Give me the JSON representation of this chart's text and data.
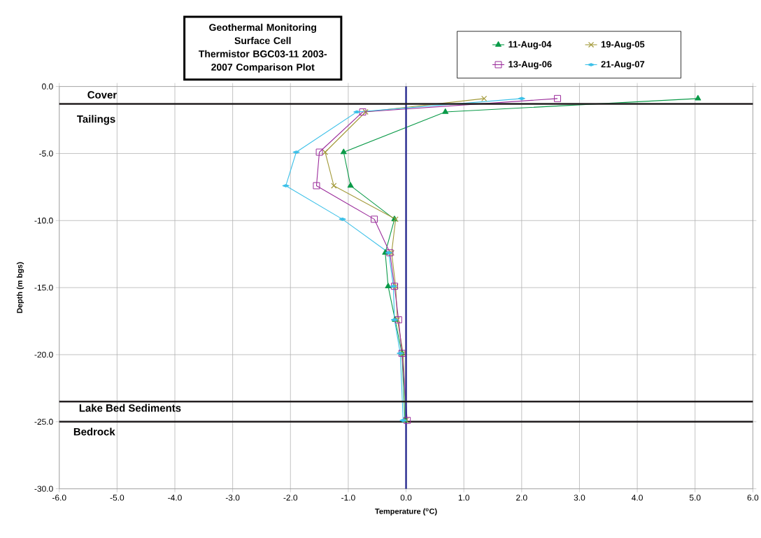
{
  "chart_data": {
    "type": "line",
    "title": "Geothermal Monitoring Surface Cell",
    "subtitle": "Thermistor BGC03-11 2003-2007 Comparison Plot",
    "xlabel": "Temperature ($^{o}$C)",
    "ylabel": "Depth (m bgs)",
    "series": [
      {
        "name": "11-Aug-04",
        "color": "#0a9a48",
        "marker": "triangle",
        "x": [
          5.05,
          0.68,
          -1.08,
          -0.96,
          -0.2,
          -0.36,
          -0.31,
          -0.19,
          -0.07,
          -0.02
        ],
        "values": [
          -0.9,
          -1.9,
          -4.9,
          -7.4,
          -9.9,
          -12.4,
          -14.9,
          -17.4,
          -19.9,
          -24.9
        ]
      },
      {
        "name": "19-Aug-05",
        "color": "#a39a3a",
        "marker": "cross",
        "x": [
          1.35,
          -0.7,
          -1.4,
          -1.25,
          -0.18,
          -0.25,
          -0.18,
          -0.15,
          -0.05,
          0.0
        ],
        "values": [
          -0.9,
          -1.9,
          -4.9,
          -7.4,
          -9.9,
          -12.4,
          -14.9,
          -17.4,
          -19.9,
          -24.9
        ]
      },
      {
        "name": "13-Aug-06",
        "color": "#9b2c9b",
        "marker": "square",
        "x": [
          2.62,
          -0.75,
          -1.5,
          -1.55,
          -0.55,
          -0.28,
          -0.2,
          -0.13,
          -0.07,
          0.02
        ],
        "values": [
          -0.9,
          -1.9,
          -4.9,
          -7.4,
          -9.9,
          -12.4,
          -14.9,
          -17.4,
          -19.9,
          -24.9
        ]
      },
      {
        "name": "21-Aug-07",
        "color": "#3cc0e8",
        "marker": "diamond",
        "x": [
          2.0,
          -0.85,
          -1.9,
          -2.08,
          -1.1,
          -0.3,
          -0.22,
          -0.2,
          -0.1,
          -0.05
        ],
        "values": [
          -0.9,
          -1.9,
          -4.9,
          -7.4,
          -9.9,
          -12.4,
          -14.9,
          -17.4,
          -19.9,
          -24.9
        ]
      }
    ],
    "xlim": [
      -6,
      6
    ],
    "xticks": [
      {
        "value": -6,
        "label": "-6.0"
      },
      {
        "value": -5,
        "label": "-5.0"
      },
      {
        "value": -4,
        "label": "-4.0"
      },
      {
        "value": -3,
        "label": "-3.0"
      },
      {
        "value": -2,
        "label": "-2.0"
      },
      {
        "value": -1,
        "label": "-1.0"
      },
      {
        "value": 0,
        "label": "0.0"
      },
      {
        "value": 1,
        "label": "1.0"
      },
      {
        "value": 2,
        "label": "2.0"
      },
      {
        "value": 3,
        "label": "3.0"
      },
      {
        "value": 4,
        "label": "4.0"
      },
      {
        "value": 5,
        "label": "5.0"
      },
      {
        "value": 6,
        "label": "6.0"
      }
    ],
    "ylim": [
      -30,
      0
    ],
    "yticks": [
      {
        "value": 0,
        "label": "0.0"
      },
      {
        "value": -5,
        "label": "-5.0"
      },
      {
        "value": -10,
        "label": "-10.0"
      },
      {
        "value": -15,
        "label": "-15.0"
      },
      {
        "value": -20,
        "label": "-20.0"
      },
      {
        "value": -25,
        "label": "-25.0"
      },
      {
        "value": -30,
        "label": "-30.0"
      }
    ],
    "ref_lines": [
      {
        "axis": "x",
        "value": 0,
        "color": "#2e3192"
      },
      {
        "axis": "y",
        "value": -1.3,
        "color": "#231f20"
      },
      {
        "axis": "y",
        "value": -23.5,
        "color": "#231f20"
      },
      {
        "axis": "y",
        "value": -25,
        "color": "#231f20"
      }
    ],
    "annotations": [
      "Cover",
      "Tailings",
      "Lake Bed  Sediments",
      "Bedrock"
    ],
    "grid": true,
    "legend": "top right",
    "line_style": "solid"
  }
}
